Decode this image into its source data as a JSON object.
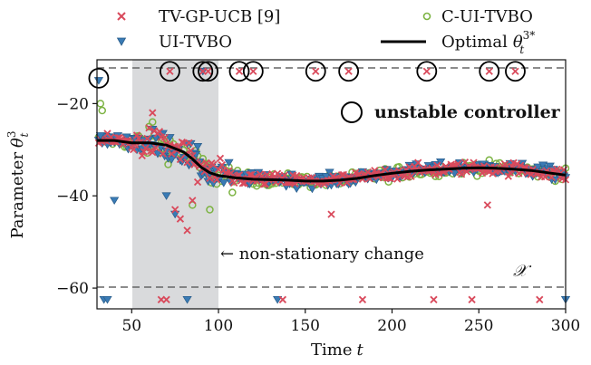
{
  "chart_data": {
    "type": "scatter",
    "xlabel": "Time",
    "xlabel_var": "t",
    "ylabel": "Parameter",
    "ylabel_var": "θ",
    "ylabel_sup": "3",
    "ylabel_sub": "t",
    "xlim": [
      30,
      300
    ],
    "ylim": [
      -64.5,
      -10.5
    ],
    "xticks": [
      50,
      100,
      150,
      200,
      250,
      300
    ],
    "yticks": [
      -20,
      -40,
      -60
    ],
    "bounds": [
      -13,
      -62.5
    ],
    "bounds_style": "gray dashed",
    "domain_symbol": "𝒳",
    "shaded_region": {
      "x": [
        50,
        100
      ],
      "label": "← non-stationary change"
    },
    "unstable_label": "unstable controller",
    "legend_position": "top, two columns",
    "legend": [
      {
        "key": "tvgp",
        "label": "TV-GP-UCB [9]",
        "marker": "x",
        "color": "#d94a5c"
      },
      {
        "key": "ui",
        "label": "UI-TVBO",
        "marker": "triangle-down",
        "color": "#3a7bb5"
      },
      {
        "key": "cui",
        "label": "C-UI-TVBO",
        "marker": "circle-open",
        "color": "#7cb342"
      },
      {
        "key": "opt",
        "label": "Optimal",
        "label_var": "θ",
        "label_sup": "3*",
        "label_sub": "t",
        "marker": "line",
        "color": "#000000"
      }
    ],
    "optimal_line": {
      "x": [
        30,
        40,
        50,
        60,
        70,
        80,
        85,
        90,
        95,
        100,
        110,
        120,
        130,
        140,
        150,
        160,
        170,
        180,
        190,
        200,
        210,
        220,
        230,
        240,
        250,
        260,
        270,
        280,
        290,
        300
      ],
      "y": [
        -28,
        -28,
        -28.5,
        -28.5,
        -29,
        -30.5,
        -32,
        -33.8,
        -35,
        -35.6,
        -36.1,
        -36.4,
        -36.5,
        -36.6,
        -36.8,
        -36.8,
        -36.6,
        -36.2,
        -35.6,
        -35.1,
        -34.7,
        -34.4,
        -34.2,
        -34,
        -33.9,
        -34,
        -34.2,
        -34.5,
        -35,
        -35.5
      ]
    },
    "series": {
      "tvgp": {
        "edge_x": [
          67,
          70,
          137,
          183,
          224,
          246,
          285
        ],
        "edge_y": [
          -62.5,
          -62.5,
          -62.5,
          -62.5,
          -62.5,
          -62.5,
          -62.5
        ],
        "top_x": [
          72,
          91,
          94,
          112,
          120,
          156,
          175,
          220,
          256,
          271
        ],
        "top_y": [
          -13,
          -13,
          -13,
          -13,
          -13,
          -13,
          -13,
          -13,
          -13,
          -13
        ],
        "outlier_x": [
          62,
          75,
          78,
          82,
          85,
          88,
          165,
          255
        ],
        "outlier_y": [
          -22,
          -43,
          -45,
          -47.5,
          -41,
          -37,
          -44,
          -42
        ]
      },
      "ui": {
        "edge_x": [
          34,
          36,
          82,
          134,
          300
        ],
        "edge_y": [
          -62.5,
          -62.5,
          -62.5,
          -62.5,
          -62.5
        ],
        "top_x": [
          91
        ],
        "top_y": [
          -13
        ],
        "outlier_x": [
          31,
          32,
          40,
          70,
          75
        ],
        "outlier_y": [
          -15,
          -27,
          -41,
          -40,
          -44
        ]
      },
      "cui": {
        "edge_x": [],
        "edge_y": [],
        "top_x": [],
        "top_y": [],
        "outlier_x": [
          32,
          33,
          62,
          85,
          95
        ],
        "outlier_y": [
          -20,
          -21.5,
          -24,
          -42,
          -43
        ]
      }
    },
    "unstable_markers": {
      "x": [
        31,
        72,
        91,
        94,
        112,
        120,
        156,
        175,
        220,
        256,
        271
      ],
      "y": [
        -14.5,
        -13,
        -13,
        -13,
        -13,
        -13,
        -13,
        -13,
        -13,
        -13,
        -13
      ]
    }
  }
}
